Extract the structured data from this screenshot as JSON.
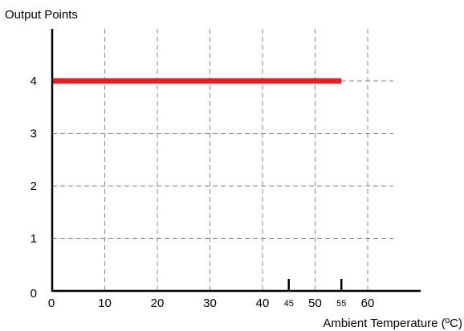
{
  "chart_data": {
    "type": "line",
    "title": "",
    "xlabel": "Ambient Temperature (ºC)",
    "ylabel": "Output Points",
    "xlim": [
      0,
      65
    ],
    "ylim": [
      0,
      5
    ],
    "x_ticks": [
      0,
      10,
      20,
      30,
      40,
      50,
      60
    ],
    "x_ticks_minor": [
      45,
      55
    ],
    "y_ticks": [
      0,
      1,
      2,
      3,
      4
    ],
    "grid": true,
    "series": [
      {
        "x": [
          0,
          55
        ],
        "y": [
          4,
          4
        ],
        "color": "#e0202a"
      }
    ],
    "markers": [
      45,
      55
    ],
    "colors": {
      "series": "#e0202a",
      "grid": "#8a8a8a",
      "axis": "#000000"
    }
  }
}
